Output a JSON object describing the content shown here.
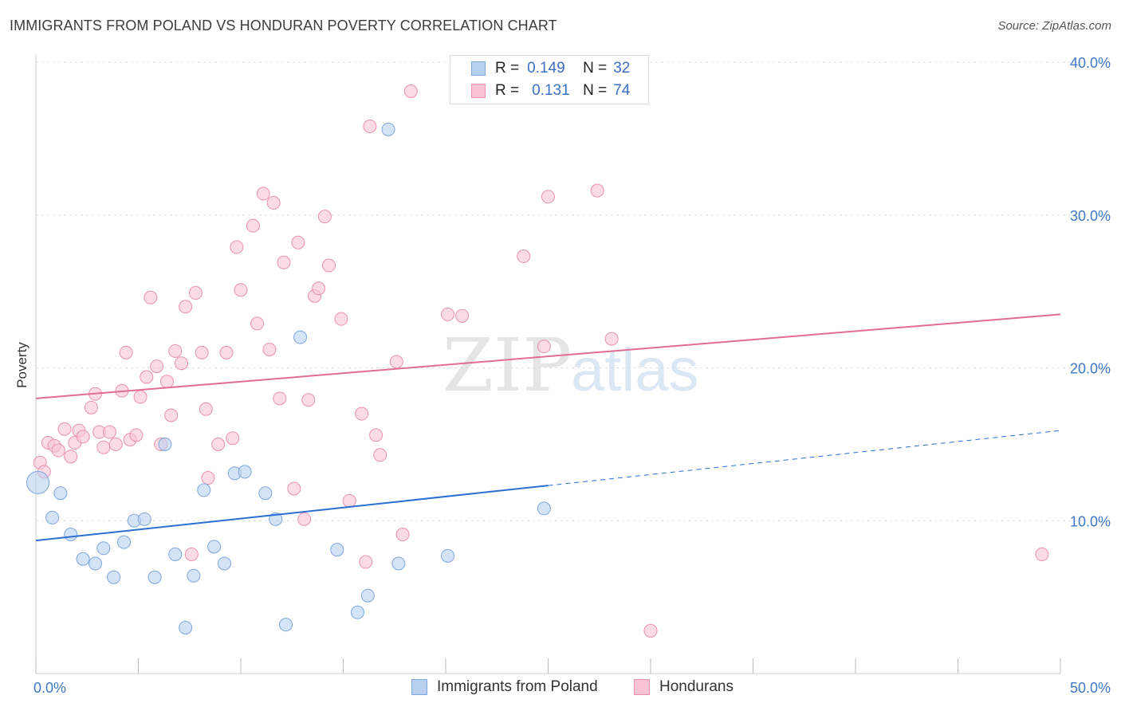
{
  "title": "IMMIGRANTS FROM POLAND VS HONDURAN POVERTY CORRELATION CHART",
  "source": "Source: ZipAtlas.com",
  "watermark": "ZIPatlas",
  "legend_top": {
    "rows": [
      {
        "r_label": "R =",
        "r_value": "0.149",
        "n_label": "N =",
        "n_value": "32"
      },
      {
        "r_label": "R =",
        "r_value": "0.131",
        "n_label": "N =",
        "n_value": "74"
      }
    ]
  },
  "colors": {
    "blue_fill": "#b8d0f0",
    "blue_edge": "#7fa6dc",
    "blue_line": "#2a6fd1",
    "pink_fill": "#f8c4d4",
    "pink_edge": "#e891ae",
    "pink_line": "#e06d94",
    "tick_text": "#3f78c6",
    "grid": "#dddddd"
  },
  "chart_data": {
    "type": "scatter",
    "title": "IMMIGRANTS FROM POLAND VS HONDURAN POVERTY CORRELATION CHART",
    "xlabel": "",
    "ylabel": "Poverty",
    "xlim": [
      0,
      50
    ],
    "ylim": [
      0,
      40
    ],
    "x_tick_labels": [
      "0.0%",
      "50.0%"
    ],
    "y_ticks": [
      10,
      20,
      30,
      40
    ],
    "y_tick_labels": [
      "10.0%",
      "20.0%",
      "30.0%",
      "40.0%"
    ],
    "grid": true,
    "legend_position": "bottom",
    "series": [
      {
        "name": "Immigrants from Poland",
        "color": "#b8d0f0",
        "trend": {
          "x0": 0,
          "y0": 8.7,
          "x1": 25,
          "y1": 12.3,
          "x_end": 50,
          "y_end": 15.9,
          "dashed_after": 25
        },
        "points": [
          [
            0.1,
            12.5
          ],
          [
            0.8,
            10.2
          ],
          [
            1.2,
            11.8
          ],
          [
            1.7,
            9.1
          ],
          [
            2.3,
            7.5
          ],
          [
            2.9,
            7.2
          ],
          [
            3.3,
            8.2
          ],
          [
            3.8,
            6.3
          ],
          [
            4.3,
            8.6
          ],
          [
            4.8,
            10.0
          ],
          [
            5.3,
            10.1
          ],
          [
            5.8,
            6.3
          ],
          [
            6.3,
            15.0
          ],
          [
            6.8,
            7.8
          ],
          [
            7.3,
            3.0
          ],
          [
            7.7,
            6.4
          ],
          [
            8.2,
            12.0
          ],
          [
            8.7,
            8.3
          ],
          [
            9.2,
            7.2
          ],
          [
            9.7,
            13.1
          ],
          [
            10.2,
            13.2
          ],
          [
            11.2,
            11.8
          ],
          [
            11.7,
            10.1
          ],
          [
            12.2,
            3.2
          ],
          [
            12.9,
            22.0
          ],
          [
            14.7,
            8.1
          ],
          [
            15.7,
            4.0
          ],
          [
            16.2,
            5.1
          ],
          [
            17.2,
            35.6
          ],
          [
            17.7,
            7.2
          ],
          [
            20.1,
            7.7
          ],
          [
            24.8,
            10.8
          ]
        ]
      },
      {
        "name": "Hondurans",
        "color": "#f8c4d4",
        "trend": {
          "x0": 0,
          "y0": 18.0,
          "x1": 50,
          "y1": 23.5
        },
        "points": [
          [
            0.2,
            13.8
          ],
          [
            0.4,
            13.2
          ],
          [
            0.6,
            15.1
          ],
          [
            0.9,
            14.9
          ],
          [
            1.1,
            14.6
          ],
          [
            1.4,
            16.0
          ],
          [
            1.7,
            14.2
          ],
          [
            1.9,
            15.1
          ],
          [
            2.1,
            15.9
          ],
          [
            2.3,
            15.5
          ],
          [
            2.7,
            17.4
          ],
          [
            2.9,
            18.3
          ],
          [
            3.1,
            15.8
          ],
          [
            3.3,
            14.8
          ],
          [
            3.6,
            15.8
          ],
          [
            3.9,
            15.0
          ],
          [
            4.2,
            18.5
          ],
          [
            4.4,
            21.0
          ],
          [
            4.6,
            15.3
          ],
          [
            4.9,
            15.6
          ],
          [
            5.1,
            18.1
          ],
          [
            5.4,
            19.4
          ],
          [
            5.6,
            24.6
          ],
          [
            5.9,
            20.1
          ],
          [
            6.1,
            15.0
          ],
          [
            6.4,
            19.1
          ],
          [
            6.6,
            16.9
          ],
          [
            6.8,
            21.1
          ],
          [
            7.1,
            20.3
          ],
          [
            7.3,
            24.0
          ],
          [
            7.6,
            7.8
          ],
          [
            7.8,
            24.9
          ],
          [
            8.1,
            21.0
          ],
          [
            8.3,
            17.3
          ],
          [
            8.4,
            12.8
          ],
          [
            8.9,
            15.0
          ],
          [
            9.3,
            21.0
          ],
          [
            9.6,
            15.4
          ],
          [
            9.8,
            27.9
          ],
          [
            10.0,
            25.1
          ],
          [
            10.6,
            29.3
          ],
          [
            10.8,
            22.9
          ],
          [
            11.1,
            31.4
          ],
          [
            11.4,
            21.2
          ],
          [
            11.6,
            30.8
          ],
          [
            11.9,
            18.0
          ],
          [
            12.1,
            26.9
          ],
          [
            12.6,
            12.1
          ],
          [
            12.8,
            28.2
          ],
          [
            13.1,
            10.1
          ],
          [
            13.3,
            17.9
          ],
          [
            13.6,
            24.7
          ],
          [
            13.8,
            25.2
          ],
          [
            14.1,
            29.9
          ],
          [
            14.3,
            26.7
          ],
          [
            14.9,
            23.2
          ],
          [
            15.3,
            11.3
          ],
          [
            15.9,
            17.0
          ],
          [
            16.1,
            7.3
          ],
          [
            16.3,
            35.8
          ],
          [
            16.6,
            15.6
          ],
          [
            16.8,
            14.3
          ],
          [
            17.6,
            20.4
          ],
          [
            17.9,
            9.1
          ],
          [
            18.3,
            38.1
          ],
          [
            20.1,
            23.5
          ],
          [
            20.8,
            23.4
          ],
          [
            23.8,
            27.3
          ],
          [
            24.8,
            21.4
          ],
          [
            25.0,
            31.2
          ],
          [
            27.4,
            31.6
          ],
          [
            28.1,
            21.9
          ],
          [
            30.0,
            2.8
          ],
          [
            49.1,
            7.8
          ]
        ]
      }
    ]
  }
}
